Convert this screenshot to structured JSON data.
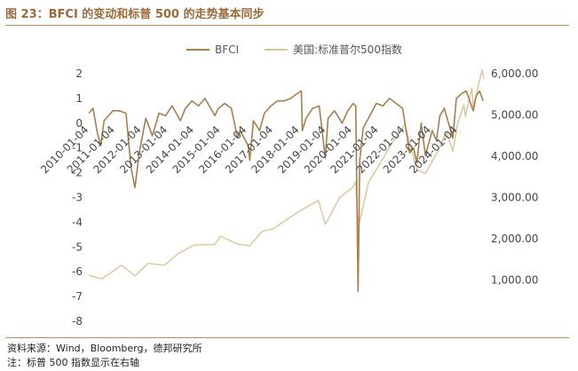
{
  "header": {
    "title": "图 23：BFCI 的变动和标普 500 的走势基本同步"
  },
  "footer": {
    "source": "资料来源：Wind，Bloomberg，德邦研究所",
    "note": "注：标普 500 指数显示在右轴"
  },
  "colors": {
    "bfci": "#a87e50",
    "spx": "#dbc7a0",
    "accent": "#9b6b3a",
    "rule": "#b8905f"
  },
  "chart_data": {
    "type": "line",
    "title": "",
    "legend": {
      "placement": "top-center",
      "entries": [
        "BFCI",
        "美国:标准普尔500指数"
      ]
    },
    "y_left": {
      "lim": [
        -8,
        2
      ],
      "ticks": [
        2,
        1,
        0,
        -1,
        -2,
        -3,
        -4,
        -5,
        -6,
        -7,
        -8
      ],
      "tick_labels": [
        "2",
        "1",
        "0",
        "-1",
        "-2",
        "-3",
        "-4",
        "-5",
        "-6",
        "-7",
        "-8"
      ]
    },
    "y_right": {
      "lim": [
        0,
        6000
      ],
      "ticks": [
        0,
        1000,
        2000,
        3000,
        4000,
        5000,
        6000
      ],
      "tick_labels": [
        "",
        "1,000.00",
        "2,000.00",
        "3,000.00",
        "4,000.00",
        "5,000.00",
        "6,000.00"
      ]
    },
    "x_axis": {
      "range": [
        "2010-01-01",
        "2024-12-31"
      ],
      "ticks": [
        "2010-01-04",
        "2011-01-04",
        "2012-01-04",
        "2013-01-04",
        "2014-01-04",
        "2015-01-04",
        "2016-01-04",
        "2017-01-04",
        "2018-01-04",
        "2019-01-04",
        "2020-01-04",
        "2021-01-04",
        "2022-01-04",
        "2023-01-04",
        "2024-01-04"
      ],
      "tick_labels": [
        "2010-01-04",
        "2011-01-04",
        "2012-01-04",
        "2013-01-04",
        "2014-01-04",
        "2015-01-04",
        "2016-01-04",
        "2017-01-04",
        "2018-01-04",
        "2019-01-04",
        "2020-01-04",
        "2021-01-04",
        "2022-01-04",
        "2023-01-04",
        "2024-01-04"
      ]
    },
    "grid": false,
    "series": [
      {
        "name": "BFCI",
        "axis": "left",
        "x": [
          "2010-01-04",
          "2010-03-01",
          "2010-05-01",
          "2010-06-15",
          "2010-08-01",
          "2010-10-01",
          "2010-12-01",
          "2011-03-01",
          "2011-06-01",
          "2011-08-10",
          "2011-10-03",
          "2011-12-01",
          "2012-03-01",
          "2012-06-01",
          "2012-09-01",
          "2012-12-01",
          "2013-03-01",
          "2013-06-24",
          "2013-09-01",
          "2013-12-01",
          "2014-03-01",
          "2014-06-01",
          "2014-10-15",
          "2014-12-01",
          "2015-03-01",
          "2015-06-01",
          "2015-08-25",
          "2015-10-01",
          "2016-01-20",
          "2016-02-11",
          "2016-04-01",
          "2016-06-27",
          "2016-09-01",
          "2016-12-01",
          "2017-03-01",
          "2017-06-01",
          "2017-09-01",
          "2017-12-01",
          "2018-01-26",
          "2018-02-09",
          "2018-04-01",
          "2018-07-01",
          "2018-10-01",
          "2018-12-24",
          "2019-02-01",
          "2019-05-01",
          "2019-08-15",
          "2019-11-01",
          "2020-01-15",
          "2020-02-20",
          "2020-03-23",
          "2020-04-15",
          "2020-06-01",
          "2020-09-01",
          "2020-12-01",
          "2021-03-01",
          "2021-06-01",
          "2021-09-01",
          "2021-12-01",
          "2022-03-08",
          "2022-05-01",
          "2022-06-16",
          "2022-08-15",
          "2022-10-12",
          "2023-01-15",
          "2023-03-13",
          "2023-05-01",
          "2023-07-01",
          "2023-10-27",
          "2023-12-15",
          "2024-03-01",
          "2024-05-01",
          "2024-08-05",
          "2024-09-15",
          "2024-11-01",
          "2024-12-20"
        ],
        "values": [
          0.4,
          0.6,
          -0.4,
          -0.9,
          0.1,
          0.3,
          0.5,
          0.5,
          0.4,
          -1.8,
          -2.6,
          -1.2,
          0.2,
          -0.5,
          0.4,
          0.3,
          0.7,
          0.1,
          0.6,
          0.9,
          0.7,
          1.0,
          0.3,
          0.6,
          0.8,
          0.6,
          -0.6,
          -0.3,
          -0.9,
          -1.5,
          0.1,
          -0.3,
          0.4,
          0.7,
          0.9,
          0.9,
          1.0,
          1.2,
          1.3,
          -0.3,
          0.2,
          0.6,
          0.7,
          -1.4,
          0.2,
          0.5,
          0.0,
          0.5,
          0.8,
          0.7,
          -6.8,
          -1.5,
          -0.2,
          0.3,
          0.8,
          0.7,
          1.0,
          0.8,
          0.6,
          -1.2,
          -1.0,
          -1.6,
          0.0,
          -1.3,
          -0.3,
          -0.7,
          0.3,
          0.6,
          -0.6,
          1.0,
          1.2,
          1.3,
          0.5,
          1.1,
          1.3,
          0.9
        ]
      },
      {
        "name": "美国:标准普尔500指数",
        "axis": "right",
        "x": [
          "2010-01-04",
          "2010-07-01",
          "2011-04-01",
          "2011-10-03",
          "2012-04-01",
          "2012-11-15",
          "2013-06-01",
          "2013-12-31",
          "2014-10-15",
          "2014-12-31",
          "2015-08-25",
          "2016-02-11",
          "2016-08-01",
          "2016-12-31",
          "2017-12-31",
          "2018-09-20",
          "2018-12-24",
          "2019-07-15",
          "2019-12-31",
          "2020-02-19",
          "2020-03-23",
          "2020-08-15",
          "2020-12-31",
          "2021-06-30",
          "2021-12-31",
          "2022-06-16",
          "2022-10-12",
          "2023-03-31",
          "2023-07-31",
          "2023-10-27",
          "2023-12-31",
          "2024-03-28",
          "2024-04-19",
          "2024-07-16",
          "2024-08-05",
          "2024-12-06",
          "2024-12-31"
        ],
        "values": [
          1115,
          1030,
          1360,
          1100,
          1400,
          1360,
          1650,
          1848,
          1860,
          2060,
          1870,
          1830,
          2180,
          2240,
          2670,
          2930,
          2350,
          3010,
          3230,
          3380,
          2240,
          3370,
          3760,
          4300,
          4770,
          3670,
          3580,
          4110,
          4590,
          4120,
          4770,
          5250,
          4970,
          5660,
          5190,
          6090,
          5880
        ]
      }
    ]
  }
}
